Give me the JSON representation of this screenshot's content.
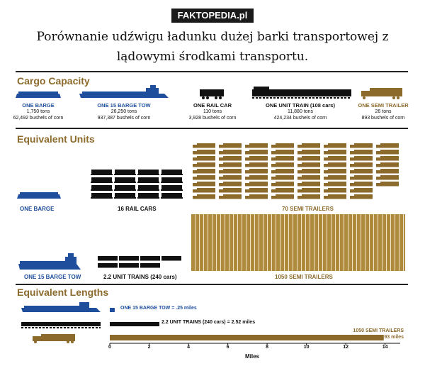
{
  "header": {
    "brand": "FAKTOPEDIA.pl",
    "title_line1": "Porównanie udźwigu ładunku dużej barki transportowej z",
    "title_line2": "lądowymi środkami transportu."
  },
  "cargo_capacity": {
    "heading": "Cargo Capacity",
    "items": [
      {
        "name": "ONE BARGE",
        "tons": "1,750 tons",
        "bushels": "62,492 bushels of corn"
      },
      {
        "name": "ONE 15 BARGE TOW",
        "tons": "26,250 tons",
        "bushels": "937,387 bushels of corn"
      },
      {
        "name": "ONE RAIL CAR",
        "tons": "110 tons",
        "bushels": "3,928 bushels of corn"
      },
      {
        "name": "ONE UNIT TRAIN (108 cars)",
        "tons": "11,880 tons",
        "bushels": "424,234 bushels of corn"
      },
      {
        "name": "ONE SEMI TRAILER",
        "tons": "26 tons",
        "bushels": "893 bushels of corn"
      }
    ]
  },
  "equivalent_units": {
    "heading": "Equivalent Units",
    "one_barge": "ONE BARGE",
    "rail_cars": "16 RAIL CARS",
    "semi_70": "70 SEMI TRAILERS",
    "tow": "ONE 15 BARGE TOW",
    "unit_trains": "2.2 UNIT TRAINS (240 cars)",
    "semi_1050": "1050 SEMI TRAILERS"
  },
  "equivalent_lengths": {
    "heading": "Equivalent Lengths",
    "tow_label": "ONE 15 BARGE TOW = .25 miles",
    "train_label": "2.2 UNIT TRAINS (240 cars) = 2.52 miles",
    "semi_label1": "1050 SEMI TRAILERS",
    "semi_label2": "= 13.93 miles",
    "axis_title": "Miles",
    "ticks": [
      "0",
      "2",
      "4",
      "6",
      "8",
      "10",
      "12",
      "14"
    ]
  },
  "chart_data": {
    "type": "bar",
    "title": "Equivalent Lengths",
    "xlabel": "Miles",
    "ylabel": "",
    "categories": [
      "ONE 15 BARGE TOW",
      "2.2 UNIT TRAINS (240 cars)",
      "1050 SEMI TRAILERS"
    ],
    "values": [
      0.25,
      2.52,
      13.93
    ],
    "xlim": [
      0,
      14
    ],
    "orientation": "horizontal",
    "colors": [
      "#1f4e9c",
      "#111111",
      "#8b6a2b"
    ]
  },
  "colors": {
    "blue": "#1f4e9c",
    "black": "#111111",
    "gold": "#8b6a2b",
    "gold_light": "#b08a3c"
  }
}
